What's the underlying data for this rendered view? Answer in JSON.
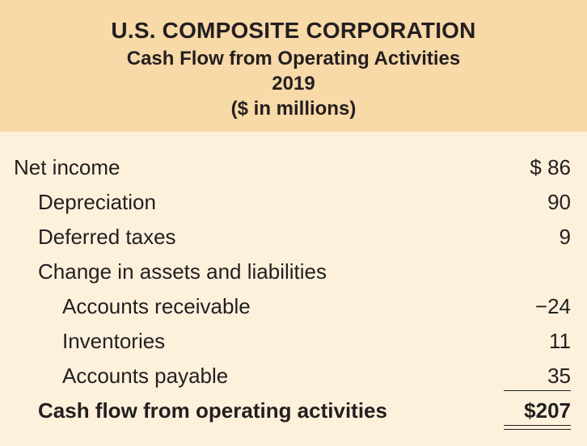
{
  "header": {
    "company": "U.S. COMPOSITE CORPORATION",
    "statement": "Cash Flow from Operating Activities",
    "year": "2019",
    "units": "($ in millions)"
  },
  "rows": [
    {
      "label": "Net income",
      "amount": "$ 86",
      "level": 0,
      "bold": false
    },
    {
      "label": "Depreciation",
      "amount": "90",
      "level": 1,
      "bold": false
    },
    {
      "label": "Deferred taxes",
      "amount": "9",
      "level": 1,
      "bold": false
    },
    {
      "label": "Change in assets and liabilities",
      "amount": "",
      "level": 1,
      "bold": false
    },
    {
      "label": "Accounts receivable",
      "amount": "−24",
      "level": 2,
      "bold": false
    },
    {
      "label": "Inventories",
      "amount": "11",
      "level": 2,
      "bold": false
    },
    {
      "label": "Accounts payable",
      "amount": "35",
      "level": 2,
      "bold": false
    },
    {
      "label": "Cash flow from operating activities",
      "amount": "$207",
      "level": 1,
      "bold": true
    }
  ]
}
